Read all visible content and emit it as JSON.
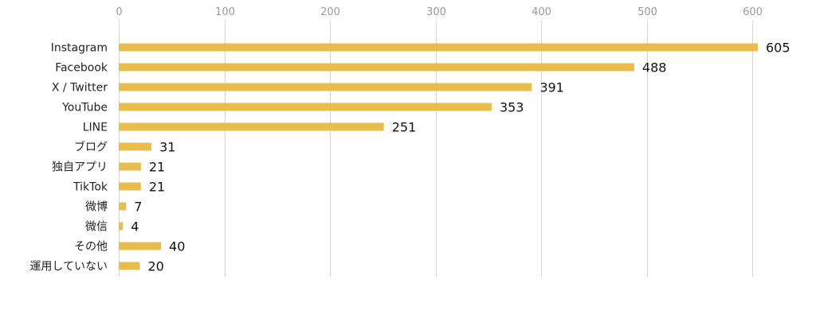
{
  "colors": {
    "bar": "#e8bd4e",
    "grid": "#d6d6d6"
  },
  "chart_data": {
    "type": "bar",
    "orientation": "horizontal",
    "title": "",
    "xlabel": "",
    "ylabel": "",
    "xlim": [
      0,
      605
    ],
    "ticks": [
      0,
      100,
      200,
      300,
      400,
      500,
      600
    ],
    "categories": [
      "Instagram",
      "Facebook",
      "X / Twitter",
      "YouTube",
      "LINE",
      "ブログ",
      "独自アプリ",
      "TikTok",
      "微博",
      "微信",
      "その他",
      "運用していない"
    ],
    "values": [
      605,
      488,
      391,
      353,
      251,
      31,
      21,
      21,
      7,
      4,
      40,
      20
    ],
    "grid": true,
    "legend": "none"
  }
}
